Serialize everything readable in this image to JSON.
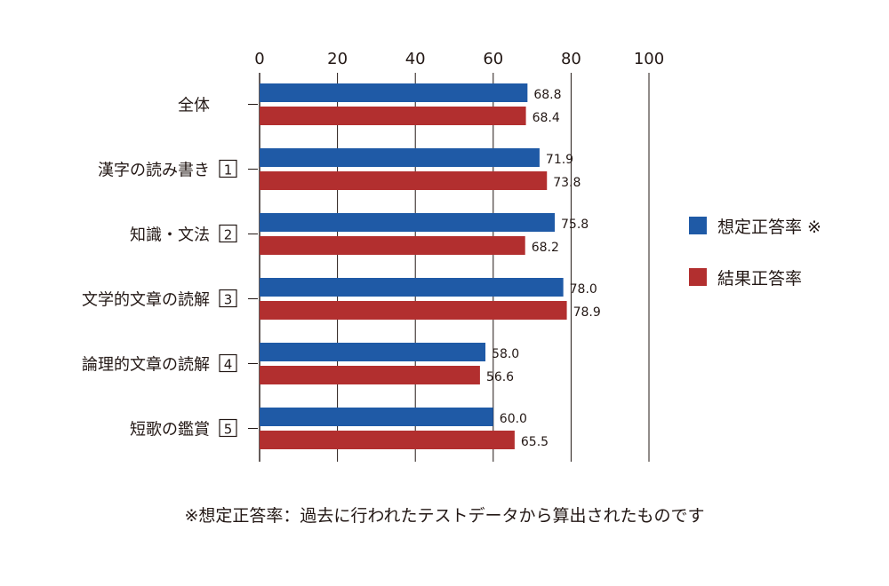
{
  "chart_data": {
    "type": "bar",
    "orientation": "horizontal",
    "categories": [
      "全体",
      "漢字の読み書き",
      "知識・文法",
      "文学的文章の読解",
      "論理的文章の読解",
      "短歌の鑑賞"
    ],
    "category_badges": [
      "",
      "1",
      "2",
      "3",
      "4",
      "5"
    ],
    "series": [
      {
        "name": "想定正答率 ※",
        "color": "#1f5aa6",
        "values": [
          68.8,
          71.9,
          75.8,
          78.0,
          58.0,
          60.0
        ]
      },
      {
        "name": "結果正答率",
        "color": "#b22f2f",
        "values": [
          68.4,
          73.8,
          68.2,
          78.9,
          56.6,
          65.5
        ]
      }
    ],
    "xlim": [
      0,
      100
    ],
    "xticks": [
      "0",
      "20",
      "40",
      "60",
      "80",
      "100"
    ],
    "grid": true,
    "legend_position": "right"
  },
  "footnote": "※想定正答率：過去に行われたテストデータから算出されたものです"
}
